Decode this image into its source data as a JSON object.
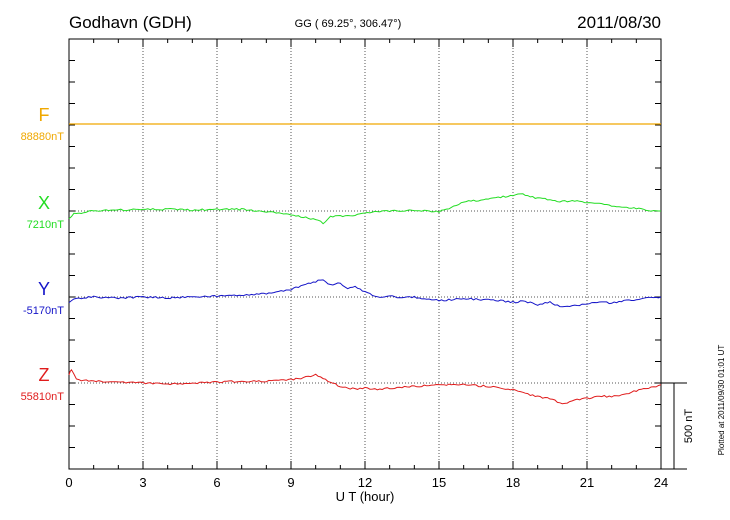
{
  "header": {
    "station": "Godhavn (GDH)",
    "coords": "GG ( 69.25°, 306.47°)",
    "date": "2011/08/30"
  },
  "footer": {
    "plotted": "Plotted at 2011/09/30 01:01 UT"
  },
  "colors": {
    "F": "#f0a800",
    "X": "#22dd22",
    "Y": "#1414c8",
    "Z": "#e01c1c",
    "grid": "#555555",
    "axis": "#000000"
  },
  "chart_data": {
    "type": "line",
    "xlabel": "U T (hour)",
    "xlim": [
      0,
      24
    ],
    "xticks": [
      0,
      3,
      6,
      9,
      12,
      15,
      18,
      21,
      24
    ],
    "scale_bar": {
      "label": "500 nT",
      "value_nT": 500
    },
    "series": [
      {
        "name": "F",
        "baseline_label": "88880nT",
        "baseline_nT": 88880,
        "x": [
          0,
          24
        ],
        "y": [
          88880,
          88880
        ]
      },
      {
        "name": "X",
        "baseline_label": "7210nT",
        "baseline_nT": 7210,
        "x": [
          0,
          0.2,
          0.5,
          1,
          2,
          3,
          4,
          5,
          6,
          7,
          8,
          9,
          9.5,
          10,
          10.3,
          10.6,
          11,
          11.5,
          12,
          12.5,
          13,
          14,
          15,
          15.5,
          16,
          16.5,
          17,
          17.5,
          18,
          18.3,
          18.6,
          19,
          19.5,
          20,
          20.5,
          21,
          21.5,
          22,
          22.5,
          23,
          23.5,
          24
        ],
        "y": [
          7170,
          7195,
          7200,
          7210,
          7215,
          7220,
          7220,
          7215,
          7220,
          7220,
          7205,
          7190,
          7175,
          7160,
          7140,
          7175,
          7180,
          7185,
          7195,
          7205,
          7210,
          7215,
          7205,
          7230,
          7265,
          7270,
          7280,
          7290,
          7300,
          7310,
          7295,
          7285,
          7275,
          7265,
          7270,
          7260,
          7250,
          7240,
          7230,
          7225,
          7210,
          7210
        ]
      },
      {
        "name": "Y",
        "baseline_label": "-5170nT",
        "baseline_nT": -5170,
        "x": [
          0,
          0.2,
          0.5,
          1,
          2,
          3,
          4,
          5,
          6,
          7,
          8,
          8.5,
          9,
          9.5,
          10,
          10.3,
          10.6,
          11,
          11.3,
          11.6,
          12,
          12.5,
          13,
          13.5,
          14,
          15,
          16,
          17,
          18,
          18.5,
          19,
          19.5,
          20,
          20.5,
          21,
          21.5,
          22,
          22.5,
          23,
          23.5,
          24
        ],
        "y": [
          -5200,
          -5180,
          -5175,
          -5170,
          -5175,
          -5170,
          -5175,
          -5170,
          -5165,
          -5160,
          -5150,
          -5140,
          -5125,
          -5100,
          -5080,
          -5070,
          -5100,
          -5090,
          -5120,
          -5110,
          -5140,
          -5170,
          -5165,
          -5175,
          -5170,
          -5190,
          -5180,
          -5185,
          -5200,
          -5195,
          -5215,
          -5200,
          -5230,
          -5220,
          -5210,
          -5200,
          -5205,
          -5190,
          -5185,
          -5175,
          -5170
        ]
      },
      {
        "name": "Z",
        "baseline_label": "55810nT",
        "baseline_nT": 55810,
        "x": [
          0,
          0.1,
          0.3,
          0.6,
          1,
          2,
          3,
          4,
          5,
          6,
          7,
          8,
          9,
          9.5,
          10,
          10.3,
          10.6,
          11,
          11.3,
          11.6,
          12,
          12.5,
          13,
          14,
          15,
          16,
          17,
          18,
          19,
          19.5,
          20,
          20.5,
          21,
          21.5,
          22,
          22.5,
          23,
          23.5,
          24
        ],
        "y": [
          55860,
          55890,
          55830,
          55825,
          55820,
          55815,
          55810,
          55805,
          55810,
          55815,
          55820,
          55820,
          55830,
          55840,
          55860,
          55840,
          55815,
          55790,
          55780,
          55775,
          55780,
          55770,
          55780,
          55790,
          55800,
          55800,
          55790,
          55770,
          55730,
          55720,
          55690,
          55710,
          55720,
          55735,
          55730,
          55745,
          55765,
          55780,
          55800
        ]
      }
    ]
  }
}
